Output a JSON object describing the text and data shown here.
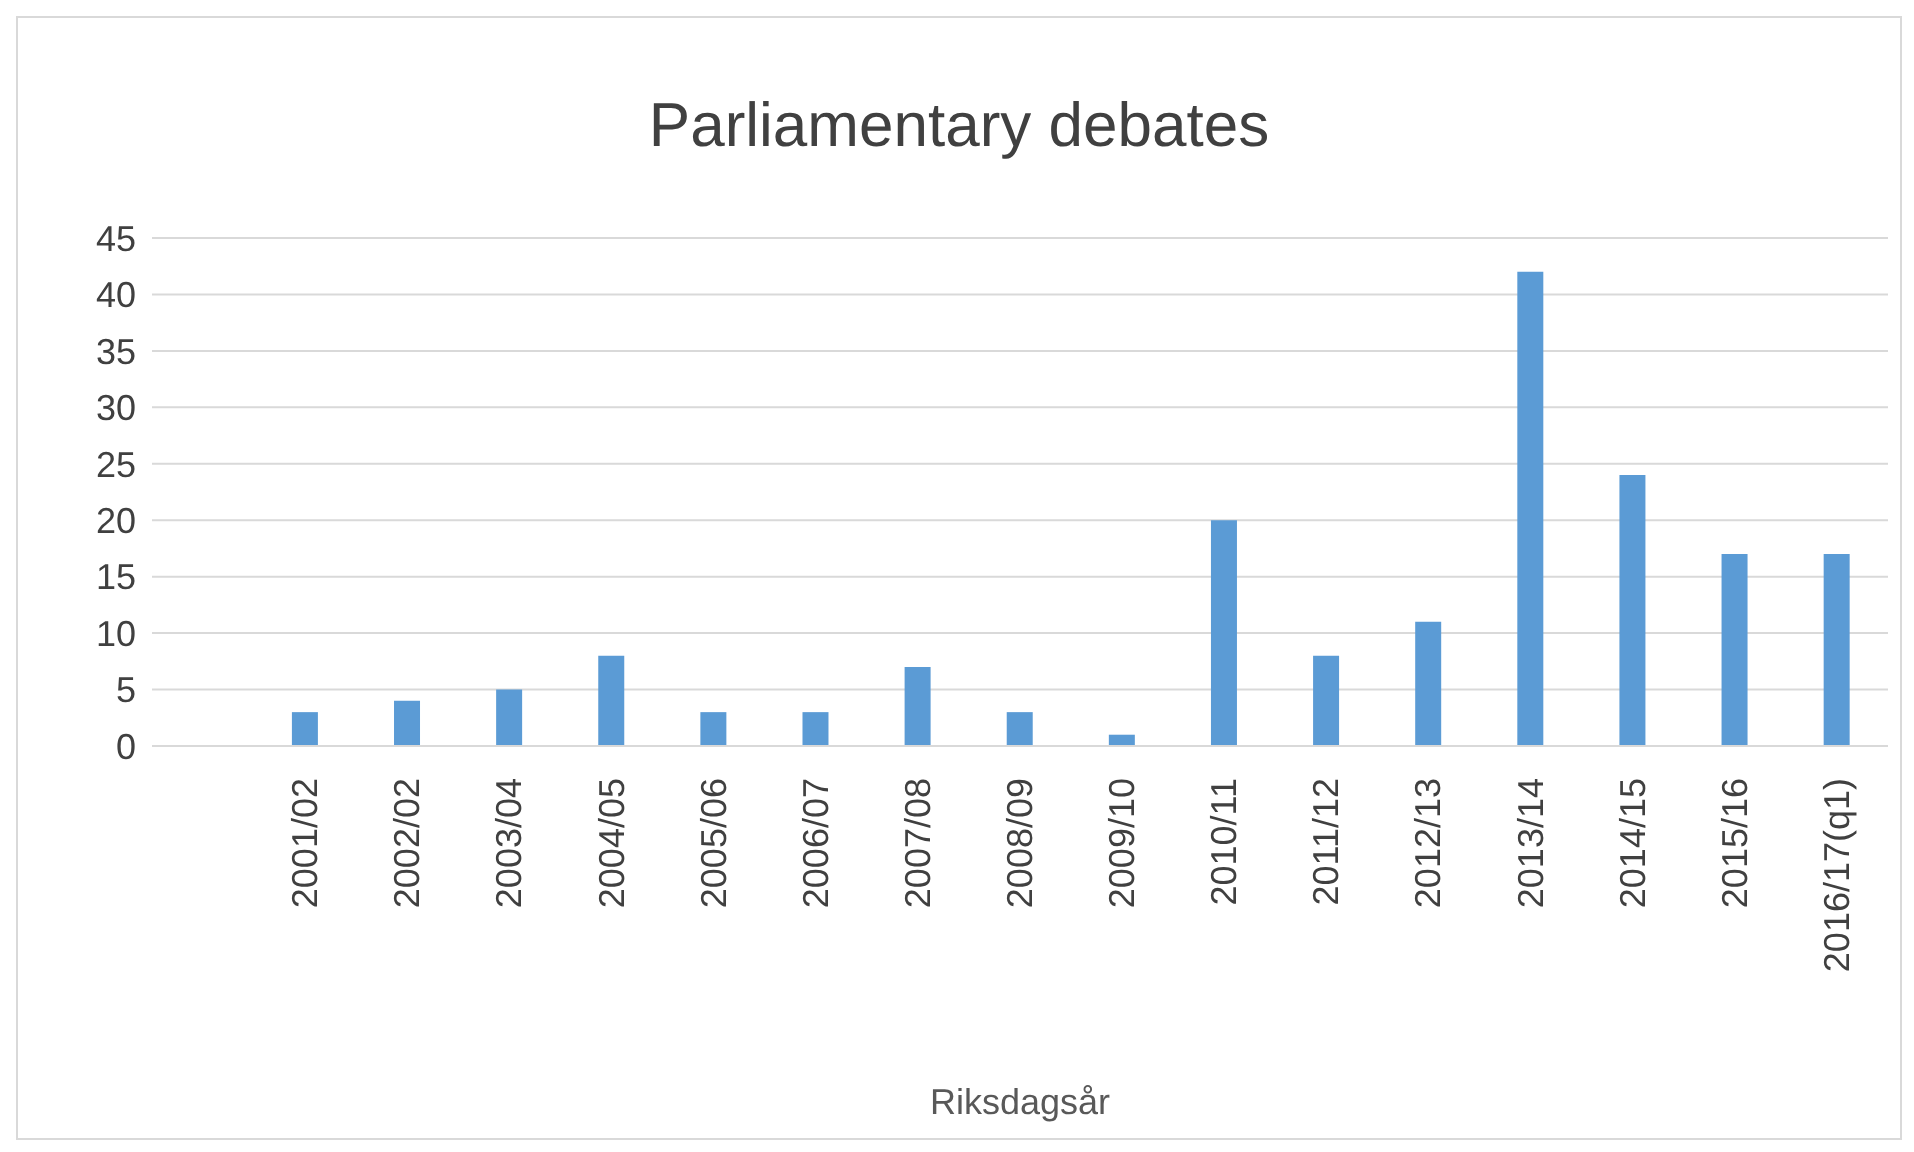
{
  "chart_data": {
    "type": "bar",
    "title": "Parliamentary debates",
    "xlabel": "Riksdagsår",
    "categories": [
      null,
      "2001/02",
      "2002/02",
      "2003/04",
      "2004/05",
      "2005/06",
      "2006/07",
      "2007/08",
      "2008/09",
      "2009/10",
      "2010/11",
      "2011/12",
      "2012/13",
      "2013/14",
      "2014/15",
      "2015/16",
      "2016/17(q1)"
    ],
    "values": [
      null,
      3,
      4,
      5,
      8,
      3,
      3,
      7,
      3,
      1,
      20,
      8,
      11,
      42,
      24,
      17,
      17
    ],
    "color": "#5b9bd5",
    "ylim": [
      0,
      45
    ],
    "yticks": [
      0,
      5,
      10,
      15,
      20,
      25,
      30,
      35,
      40,
      45
    ],
    "grid": "y",
    "legend": false
  }
}
